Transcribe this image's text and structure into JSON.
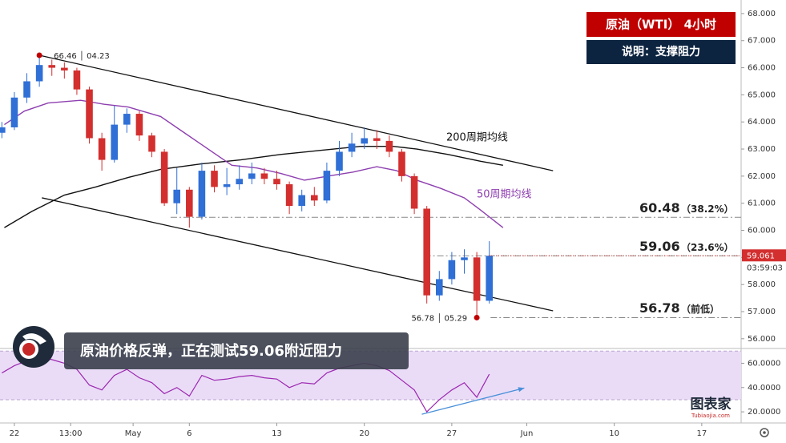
{
  "chart_data": {
    "type": "candlestick",
    "xlim": [
      -1.15,
      58.15
    ],
    "ylim": [
      55.64,
      68.5
    ],
    "xticks": [
      {
        "value": 0,
        "label": "22"
      },
      {
        "value": 4.5,
        "label": "13:00"
      },
      {
        "value": 9.5,
        "label": "May"
      },
      {
        "value": 14,
        "label": "6"
      },
      {
        "value": 21,
        "label": "13"
      },
      {
        "value": 28,
        "label": "20"
      },
      {
        "value": 35,
        "label": "27"
      },
      {
        "value": 41,
        "label": "Jun"
      },
      {
        "value": 48,
        "label": "10"
      },
      {
        "value": 55,
        "label": "17"
      }
    ],
    "yticks": [
      {
        "value": 56,
        "label": "56.000"
      },
      {
        "value": 57,
        "label": "57.000"
      },
      {
        "value": 58,
        "label": "58.000"
      },
      {
        "value": 59,
        "label": "59.000"
      },
      {
        "value": 60,
        "label": "60.000"
      },
      {
        "value": 61,
        "label": "61.000"
      },
      {
        "value": 62,
        "label": "62.000"
      },
      {
        "value": 63,
        "label": "63.000"
      },
      {
        "value": 64,
        "label": "64.000"
      },
      {
        "value": 65,
        "label": "65.000"
      },
      {
        "value": 66,
        "label": "66.000"
      },
      {
        "value": 67,
        "label": "67.000"
      },
      {
        "value": 68,
        "label": "68.000"
      }
    ],
    "up_color": "#2f6fd6",
    "down_color": "#d32f2f",
    "x": [
      -1,
      0,
      1,
      2,
      3,
      4,
      5,
      6,
      7,
      8,
      9,
      10,
      11,
      12,
      13,
      14,
      15,
      16,
      17,
      18,
      19,
      20,
      21,
      22,
      23,
      24,
      25,
      26,
      27,
      28,
      29,
      30,
      31,
      32,
      33,
      34,
      35,
      36,
      37,
      38
    ],
    "open": [
      63.6,
      63.8,
      64.9,
      65.5,
      66.1,
      66.0,
      65.9,
      65.2,
      63.4,
      62.6,
      63.9,
      64.3,
      63.5,
      62.9,
      61.0,
      61.5,
      60.5,
      62.2,
      61.6,
      61.7,
      61.9,
      62.1,
      61.9,
      61.7,
      60.9,
      61.3,
      61.1,
      62.2,
      62.9,
      63.2,
      63.4,
      63.3,
      62.9,
      62.0,
      60.8,
      57.6,
      58.2,
      58.9,
      59.0,
      57.4
    ],
    "high": [
      64.0,
      65.1,
      65.8,
      66.46,
      66.3,
      66.2,
      66.0,
      65.3,
      63.6,
      64.6,
      64.5,
      64.4,
      63.6,
      63.0,
      62.3,
      61.6,
      62.5,
      62.4,
      62.3,
      62.4,
      62.5,
      62.3,
      62.2,
      61.8,
      61.5,
      61.6,
      62.5,
      63.3,
      63.6,
      63.8,
      63.7,
      63.5,
      63.0,
      62.1,
      60.9,
      58.5,
      59.2,
      59.3,
      59.2,
      59.6
    ],
    "low": [
      63.4,
      63.7,
      64.7,
      65.3,
      65.7,
      65.6,
      65.0,
      63.2,
      62.2,
      62.5,
      63.6,
      63.3,
      62.7,
      60.9,
      60.6,
      60.1,
      60.4,
      61.4,
      61.3,
      61.5,
      61.7,
      61.7,
      61.5,
      60.6,
      60.7,
      60.9,
      61.0,
      62.0,
      62.7,
      63.0,
      63.0,
      62.7,
      61.8,
      60.6,
      57.3,
      57.4,
      58.0,
      58.4,
      56.78,
      57.3
    ],
    "close": [
      63.8,
      64.9,
      65.5,
      66.1,
      66.0,
      65.9,
      65.2,
      63.4,
      62.6,
      63.9,
      64.3,
      63.5,
      62.9,
      61.0,
      61.5,
      60.5,
      62.2,
      61.6,
      61.7,
      61.9,
      62.1,
      61.9,
      61.7,
      60.9,
      61.3,
      61.1,
      62.2,
      62.9,
      63.2,
      63.4,
      63.3,
      62.9,
      62.0,
      60.8,
      57.6,
      58.2,
      58.9,
      59.0,
      57.4,
      59.06
    ],
    "moving_averages": [
      {
        "name": "200周期均线",
        "color": "#111111",
        "x": [
          -0.8,
          1.4,
          4.0,
          6.5,
          9.1,
          11.7,
          14.9,
          18.1,
          21.3,
          24.5,
          27.7,
          30.3,
          32.2,
          34.7,
          37.3,
          39.1
        ],
        "values": [
          60.1,
          60.7,
          61.3,
          61.6,
          61.95,
          62.25,
          62.45,
          62.6,
          62.8,
          62.95,
          63.1,
          63.1,
          63.0,
          62.8,
          62.55,
          62.4
        ]
      },
      {
        "name": "50周期均线",
        "color": "#8e3fb0",
        "x": [
          -0.8,
          0.8,
          2.7,
          5.3,
          7.2,
          9.1,
          11.7,
          13.6,
          15.5,
          17.4,
          19.4,
          21.3,
          23.2,
          25.1,
          27.1,
          29.0,
          30.6,
          32.2,
          34.1,
          36.0,
          37.3,
          39.1
        ],
        "values": [
          63.9,
          64.4,
          64.7,
          64.8,
          64.65,
          64.55,
          64.2,
          63.6,
          63.0,
          62.4,
          62.3,
          62.1,
          61.85,
          62.0,
          62.15,
          62.35,
          62.2,
          61.85,
          61.55,
          61.2,
          60.75,
          60.1
        ]
      }
    ],
    "trendlines": [
      {
        "x": [
          2,
          43.1
        ],
        "values": [
          66.46,
          62.2
        ]
      },
      {
        "x": [
          2.2,
          43.1
        ],
        "values": [
          61.2,
          57.03
        ]
      }
    ],
    "levels": [
      {
        "value": 60.48,
        "note": "（38.2%）",
        "from": 12.5
      },
      {
        "value": 59.06,
        "note": "（23.6%）",
        "from": 32.8
      },
      {
        "value": 56.78,
        "note": "（前低）",
        "from": 38.1
      }
    ],
    "annotations": [
      {
        "text": "66.46 │ 04.23",
        "x": 2,
        "value": 66.46
      },
      {
        "text": "56.78 │ 05.29",
        "x": 37,
        "value": 56.78
      }
    ],
    "price_tag": {
      "value": 59.061,
      "label": "59.061",
      "timer": "03:59:03"
    },
    "title": "原油（WTI） 4小时",
    "subtitle": "说明：支撑阻力",
    "banner": "原油价格反弹，正在测试59.06附近阻力",
    "logo": "图表家",
    "logo_url": "Tubiaojia.com",
    "rsi": {
      "color": "#9c27b0",
      "ylim": [
        11.5,
        71.5
      ],
      "band": [
        30,
        70
      ],
      "yticks": [
        {
          "value": 20,
          "label": "20.0000"
        },
        {
          "value": 40,
          "label": "40.0000"
        },
        {
          "value": 60,
          "label": "60.0000"
        }
      ],
      "x": [
        -1,
        0,
        1,
        2,
        3,
        4,
        5,
        6,
        7,
        8,
        9,
        10,
        11,
        12,
        13,
        14,
        15,
        16,
        17,
        18,
        19,
        20,
        21,
        22,
        23,
        24,
        25,
        26,
        27,
        28,
        29,
        30,
        31,
        32,
        33,
        34,
        35,
        36,
        37,
        38
      ],
      "values": [
        52,
        58,
        62,
        65,
        63,
        60,
        55,
        42,
        38,
        50,
        55,
        48,
        44,
        35,
        40,
        33,
        50,
        46,
        47,
        49,
        50,
        48,
        47,
        40,
        44,
        43,
        52,
        56,
        58,
        60,
        58,
        54,
        46,
        38,
        20,
        30,
        38,
        44,
        32,
        51
      ],
      "trend": {
        "x": [
          32.6,
          40.8
        ],
        "values": [
          18,
          39.6
        ],
        "color": "#4a90d9"
      }
    }
  }
}
